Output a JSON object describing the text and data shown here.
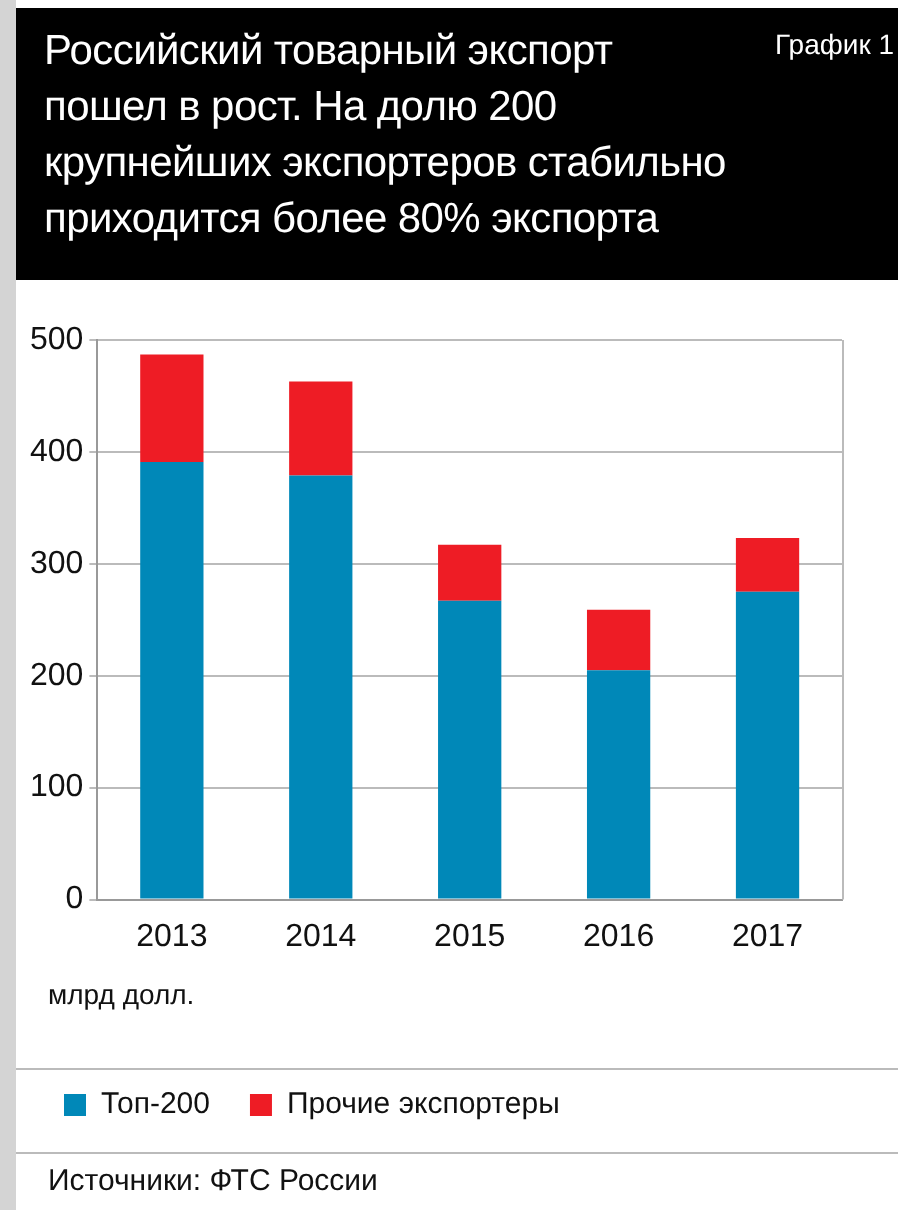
{
  "chart_data": {
    "type": "bar",
    "title": "Российский товарный экспорт пошел в рост. На долю 200 крупнейших экспортеров стабильно приходится более 80% экспорта",
    "ylabel": "млрд долл.",
    "annotations": [
      "График 1",
      "Источники: ФТС России"
    ],
    "categories": [
      "2013",
      "2014",
      "2015",
      "2016",
      "2017"
    ],
    "series": [
      {
        "name": "Топ-200",
        "color": "#0088b8",
        "values": [
          391,
          379,
          267,
          205,
          275
        ]
      },
      {
        "name": "Прочие экспортеры",
        "color": "#ee1c25",
        "values": [
          96,
          84,
          50,
          54,
          48
        ]
      }
    ],
    "stacked": true,
    "ylim": [
      0,
      500
    ],
    "yticks": [
      0,
      100,
      200,
      300,
      400,
      500
    ],
    "grid": "y",
    "legend": "bottom"
  }
}
